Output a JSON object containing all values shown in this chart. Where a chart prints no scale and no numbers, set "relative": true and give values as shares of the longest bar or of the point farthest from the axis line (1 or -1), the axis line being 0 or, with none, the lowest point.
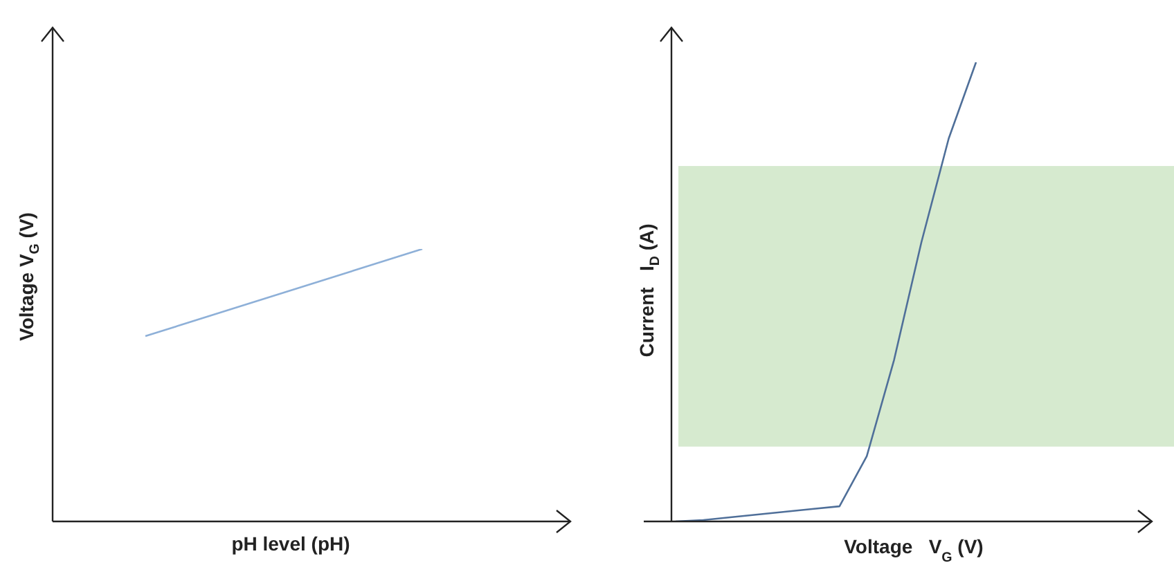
{
  "chart_data": [
    {
      "type": "line",
      "xlabel": "pH level (pH)",
      "ylabel": "Voltage V$_{G}$ (V)",
      "relative": true,
      "categories": [
        null,
        null
      ],
      "series": [
        {
          "color": "#8eb0d8",
          "values": [
            0.68,
            1
          ]
        }
      ]
    },
    {
      "type": "line",
      "xlabel": "Voltage   V$_{G}$ (V)",
      "ylabel": "Current   I$_{D}$ (A)",
      "relative": true,
      "categories": [
        null,
        null,
        null,
        null,
        null,
        null,
        null,
        null,
        null,
        null,
        null,
        null
      ],
      "bands": [
        {
          "axis": "y",
          "from": 0.163,
          "to": 0.774,
          "color": "#d6eacf"
        }
      ],
      "series": [
        {
          "color": "#4f6f99",
          "values": [
            0,
            0.003,
            0.009,
            0.015,
            0.021,
            0.027,
            0.033,
            0.142,
            0.352,
            0.608,
            0.834,
            1
          ]
        }
      ]
    }
  ]
}
